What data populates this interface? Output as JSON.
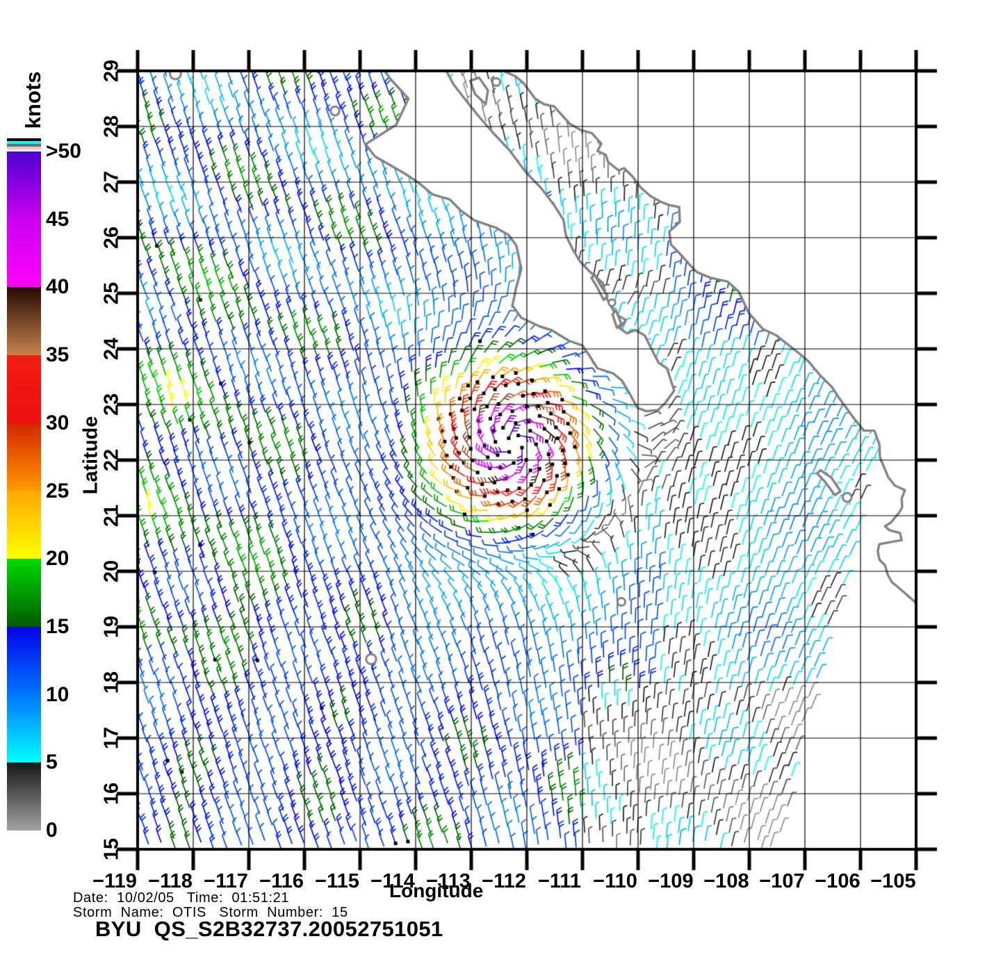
{
  "colorbar": {
    "title": "knots",
    "tick_labels": [
      ">50",
      "45",
      "40",
      "35",
      "30",
      "25",
      "20",
      "15",
      "10",
      "5",
      "0"
    ],
    "top_flag_bands": [
      "#000000",
      "#00ffff",
      "#6e6e6e",
      "#ffbec6"
    ],
    "segments": [
      {
        "lo": 0,
        "hi": 5,
        "lo_color": "#a2a2a2",
        "hi_color": "#161616"
      },
      {
        "lo": 5,
        "hi": 10,
        "lo_color": "#00ffff",
        "hi_color": "#0077ff"
      },
      {
        "lo": 10,
        "hi": 15,
        "lo_color": "#0077ff",
        "hi_color": "#0202e8"
      },
      {
        "lo": 15,
        "hi": 20,
        "lo_color": "#005a00",
        "hi_color": "#00d900"
      },
      {
        "lo": 20,
        "hi": 25,
        "lo_color": "#ffff00",
        "hi_color": "#ffa800"
      },
      {
        "lo": 25,
        "hi": 30,
        "lo_color": "#ff9900",
        "hi_color": "#d42600"
      },
      {
        "lo": 30,
        "hi": 35,
        "lo_color": "#ec1010",
        "hi_color": "#f21c12"
      },
      {
        "lo": 35,
        "hi": 40,
        "lo_color": "#c8824e",
        "hi_color": "#240a00"
      },
      {
        "lo": 40,
        "hi": 45,
        "lo_color": "#ff00ff",
        "hi_color": "#cb00ee"
      },
      {
        "lo": 45,
        "hi": 50,
        "lo_color": "#cb00ee",
        "hi_color": "#4b00d2"
      }
    ]
  },
  "axes": {
    "x": {
      "label": "Longitude",
      "tick_labels": [
        "−119",
        "−118",
        "−117",
        "−116",
        "−115",
        "−114",
        "−113",
        "−112",
        "−111",
        "−110",
        "−109",
        "−108",
        "−107",
        "−106",
        "−105"
      ]
    },
    "y": {
      "label": "Latitude",
      "tick_labels": [
        "29",
        "28",
        "27",
        "26",
        "25",
        "24",
        "23",
        "22",
        "21",
        "20",
        "19",
        "18",
        "17",
        "16",
        "15"
      ]
    }
  },
  "footer": {
    "date_time_line": "Date:  10/02/05   Time:  01:51:21",
    "storm_line": "Storm  Name:  OTIS   Storm  Number:  15",
    "product_title": "BYU  QS_S2B32737.20052751051"
  },
  "chart_data": {
    "type": "vector_field_map",
    "title": "BYU QS_S2B32737.20052751051",
    "subtitle_lines": [
      "Date: 10/02/05 Time: 01:51:21",
      "Storm Name: OTIS Storm Number: 15"
    ],
    "units": "knots",
    "xlabel": "Longitude",
    "ylabel": "Latitude",
    "lon_range": [
      -119,
      -105
    ],
    "lat_range": [
      15,
      29
    ],
    "grid_interval_deg": 1,
    "legend_position": "left",
    "storm": {
      "name": "OTIS",
      "number": "15",
      "center_lon": -112.25,
      "center_lat": 22.3,
      "peak_speed_knots": 52,
      "size_deg": 1.75,
      "rotation": "counterclockwise",
      "inflow_deg": 25,
      "rain_flagged": true
    },
    "ambient": {
      "base_knots": 13.5,
      "from_azimuth_west_deg": 340,
      "from_azimuth_east_deg": 25,
      "regions": [
        {
          "name": "southeast-calm",
          "lat_max": 17.8,
          "lon_min": -111.0,
          "knots": 3.5
        },
        {
          "name": "east-coastal",
          "lon_min": -109.6,
          "lat_max": 24.0,
          "knots": 7.5
        },
        {
          "name": "upper-gulf",
          "lat_min": 26.6,
          "lon_min": -113.2,
          "lon_max": -109.8,
          "knots": 5.0
        },
        {
          "name": "lower-gulf",
          "lat_min": 24.8,
          "lat_max": 26.6,
          "lon_min": -111.6,
          "lon_max": -109.5,
          "knots": 6.0
        },
        {
          "name": "northwest",
          "lat_min": 26.5,
          "lon_max": -113.0,
          "knots": 12.0
        },
        {
          "name": "west-moderate",
          "lat_min": 18.5,
          "lat_max": 24.5,
          "lon_max": -114.5,
          "knots": 15.5
        }
      ]
    },
    "swath_edge_southeast": {
      "lat_ref": 23,
      "lon_at_ref": -105.5,
      "dlon_per_dlat": 0.25
    },
    "coastlines": {
      "baja_california": [
        [
          -114.6,
          29.06
        ],
        [
          -114.45,
          28.85
        ],
        [
          -114.13,
          28.5
        ],
        [
          -114.35,
          28.03
        ],
        [
          -114.62,
          27.86
        ],
        [
          -114.9,
          27.68
        ],
        [
          -114.73,
          27.46
        ],
        [
          -114.45,
          27.3
        ],
        [
          -114.19,
          27.15
        ],
        [
          -113.95,
          26.99
        ],
        [
          -113.7,
          26.78
        ],
        [
          -113.39,
          26.69
        ],
        [
          -113.19,
          26.49
        ],
        [
          -112.94,
          26.31
        ],
        [
          -112.56,
          26.18
        ],
        [
          -112.33,
          26.05
        ],
        [
          -112.19,
          25.86
        ],
        [
          -112.1,
          25.44
        ],
        [
          -112.19,
          25.11
        ],
        [
          -112.26,
          24.78
        ],
        [
          -112.1,
          24.56
        ],
        [
          -111.76,
          24.4
        ],
        [
          -111.56,
          24.34
        ],
        [
          -111.25,
          24.15
        ],
        [
          -111.0,
          24.06
        ],
        [
          -110.89,
          23.9
        ],
        [
          -110.73,
          23.65
        ],
        [
          -110.45,
          23.56
        ],
        [
          -110.29,
          23.43
        ],
        [
          -110.16,
          23.21
        ],
        [
          -110.01,
          22.94
        ],
        [
          -109.85,
          22.88
        ],
        [
          -109.64,
          22.9
        ],
        [
          -109.51,
          23.03
        ],
        [
          -109.35,
          23.25
        ],
        [
          -109.48,
          23.65
        ],
        [
          -109.63,
          23.75
        ],
        [
          -109.73,
          23.94
        ],
        [
          -109.88,
          24.24
        ],
        [
          -110.05,
          24.34
        ],
        [
          -110.2,
          24.28
        ],
        [
          -110.33,
          24.37
        ],
        [
          -110.22,
          24.52
        ],
        [
          -110.41,
          24.63
        ],
        [
          -110.56,
          24.9
        ],
        [
          -110.64,
          25.19
        ],
        [
          -110.88,
          25.4
        ],
        [
          -111.05,
          25.58
        ],
        [
          -111.18,
          25.8
        ],
        [
          -111.3,
          26.05
        ],
        [
          -111.34,
          26.32
        ],
        [
          -111.52,
          26.6
        ],
        [
          -111.75,
          26.9
        ],
        [
          -112.02,
          27.18
        ],
        [
          -112.32,
          27.58
        ],
        [
          -112.62,
          27.9
        ],
        [
          -112.88,
          28.2
        ],
        [
          -113.12,
          28.5
        ],
        [
          -113.32,
          28.76
        ],
        [
          -113.48,
          29.06
        ]
      ],
      "mainland_mexico": [
        [
          -112.56,
          29.06
        ],
        [
          -112.2,
          28.9
        ],
        [
          -112.06,
          28.78
        ],
        [
          -111.85,
          28.5
        ],
        [
          -111.69,
          28.4
        ],
        [
          -111.51,
          28.36
        ],
        [
          -111.23,
          28.05
        ],
        [
          -111.04,
          27.94
        ],
        [
          -110.83,
          27.88
        ],
        [
          -110.66,
          27.69
        ],
        [
          -110.73,
          27.56
        ],
        [
          -110.58,
          27.49
        ],
        [
          -110.54,
          27.36
        ],
        [
          -110.35,
          27.21
        ],
        [
          -110.25,
          27.25
        ],
        [
          -110.1,
          27.1
        ],
        [
          -109.95,
          26.9
        ],
        [
          -109.78,
          26.75
        ],
        [
          -109.6,
          26.65
        ],
        [
          -109.45,
          26.59
        ],
        [
          -109.26,
          26.55
        ],
        [
          -109.25,
          26.28
        ],
        [
          -109.44,
          26.11
        ],
        [
          -109.41,
          25.88
        ],
        [
          -109.19,
          25.65
        ],
        [
          -109.06,
          25.5
        ],
        [
          -108.94,
          25.38
        ],
        [
          -108.7,
          25.28
        ],
        [
          -108.39,
          25.21
        ],
        [
          -108.19,
          25.03
        ],
        [
          -108.01,
          24.65
        ],
        [
          -107.76,
          24.36
        ],
        [
          -107.51,
          24.24
        ],
        [
          -107.08,
          23.9
        ],
        [
          -106.94,
          23.78
        ],
        [
          -106.73,
          23.53
        ],
        [
          -106.51,
          23.31
        ],
        [
          -106.38,
          23.11
        ],
        [
          -106.14,
          22.78
        ],
        [
          -105.94,
          22.53
        ],
        [
          -105.75,
          22.53
        ],
        [
          -105.66,
          22.28
        ],
        [
          -105.65,
          22.05
        ],
        [
          -105.5,
          21.69
        ],
        [
          -105.38,
          21.54
        ],
        [
          -105.2,
          21.46
        ],
        [
          -105.26,
          21.31
        ],
        [
          -105.25,
          21.15
        ],
        [
          -105.31,
          21.05
        ],
        [
          -105.45,
          20.88
        ],
        [
          -105.56,
          20.81
        ],
        [
          -105.48,
          20.74
        ],
        [
          -105.29,
          20.69
        ],
        [
          -105.26,
          20.56
        ],
        [
          -105.66,
          20.49
        ],
        [
          -105.69,
          20.36
        ],
        [
          -105.66,
          20.21
        ],
        [
          -105.56,
          20.11
        ],
        [
          -105.51,
          19.94
        ],
        [
          -105.44,
          19.81
        ],
        [
          -105.25,
          19.65
        ],
        [
          -105.0,
          19.43
        ],
        [
          -104.6,
          19.25
        ],
        [
          -104.6,
          29.06
        ]
      ],
      "islands": [
        {
          "poly": [
            [
              -113.02,
              28.82
            ],
            [
              -112.86,
              28.88
            ],
            [
              -112.7,
              28.65
            ],
            [
              -112.74,
              28.4
            ],
            [
              -112.93,
              28.58
            ]
          ]
        },
        {
          "poly": [
            [
              -110.78,
              25.33
            ],
            [
              -110.66,
              25.12
            ],
            [
              -110.55,
              24.95
            ],
            [
              -110.62,
              24.88
            ],
            [
              -110.73,
              25.1
            ],
            [
              -110.84,
              25.28
            ]
          ]
        },
        {
          "poly": [
            [
              -110.4,
              24.7
            ],
            [
              -110.3,
              24.45
            ],
            [
              -110.38,
              24.38
            ],
            [
              -110.46,
              24.62
            ]
          ]
        },
        {
          "poly": [
            [
              -106.72,
              21.82
            ],
            [
              -106.52,
              21.68
            ],
            [
              -106.36,
              21.44
            ],
            [
              -106.46,
              21.37
            ],
            [
              -106.63,
              21.6
            ],
            [
              -106.78,
              21.76
            ]
          ]
        },
        {
          "circle": [
            -118.32,
            28.95,
            0.1
          ]
        },
        {
          "circle": [
            -115.45,
            28.28,
            0.08
          ]
        },
        {
          "circle": [
            -112.55,
            28.8,
            0.07
          ]
        },
        {
          "circle": [
            -110.47,
            24.83,
            0.06
          ]
        },
        {
          "circle": [
            -106.24,
            21.33,
            0.08
          ]
        },
        {
          "circle": [
            -114.8,
            18.42,
            0.09
          ]
        },
        {
          "circle": [
            -110.3,
            19.45,
            0.07
          ]
        }
      ]
    },
    "colors": {
      "coastline": "#828282",
      "grid": "#000000",
      "rain_flag_dot": "#000000",
      "background": "#ffffff"
    }
  }
}
